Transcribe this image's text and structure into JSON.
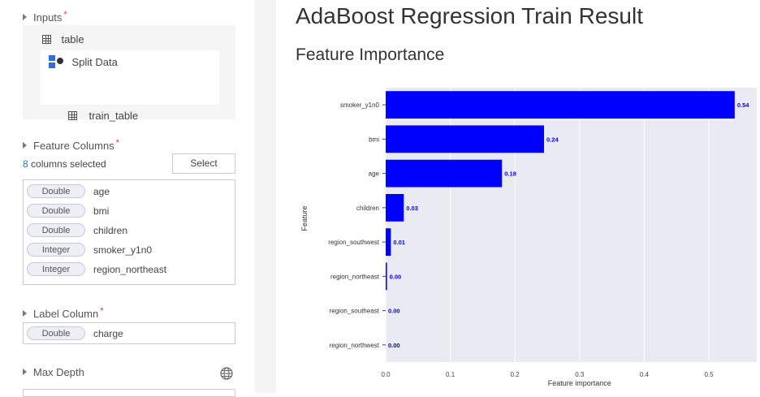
{
  "left": {
    "inputs_label": "Inputs",
    "required_mark": "*",
    "input_table": "table",
    "split_data": "Split Data",
    "train_table": "train_table",
    "feature_columns_label": "Feature Columns",
    "selected_count": "8",
    "selected_suffix": " columns selected",
    "select_button": "Select",
    "columns": [
      {
        "type": "Double",
        "name": "age"
      },
      {
        "type": "Double",
        "name": "bmi"
      },
      {
        "type": "Double",
        "name": "children"
      },
      {
        "type": "Integer",
        "name": "smoker_y1n0"
      },
      {
        "type": "Integer",
        "name": "region_northeast"
      }
    ],
    "label_column_label": "Label Column",
    "label_column": {
      "type": "Double",
      "name": "charge"
    },
    "max_depth_label": "Max Depth"
  },
  "main": {
    "title": "AdaBoost Regression Train Result",
    "subtitle": "Feature Importance"
  },
  "colors": {
    "bar": "#0000ff",
    "plot_bg": "#eaeaf2",
    "link": "#2f6fd6"
  },
  "chart_data": {
    "type": "bar",
    "orientation": "horizontal",
    "categories": [
      "smoker_y1n0",
      "bmi",
      "age",
      "children",
      "region_southwest",
      "region_northeast",
      "region_southeast",
      "region_northwest"
    ],
    "values": [
      0.54,
      0.245,
      0.18,
      0.028,
      0.008,
      0.002,
      0.0,
      0.0
    ],
    "value_labels": [
      "0.54",
      "0.24",
      "0.18",
      "0.03",
      "0.01",
      "0.00",
      "0.00",
      "0.00"
    ],
    "xlabel": "Feature importance",
    "ylabel": "Feature",
    "xlim": [
      0,
      0.55
    ],
    "xticks": [
      "0.0",
      "0.1",
      "0.2",
      "0.3",
      "0.4",
      "0.5"
    ],
    "xtick_values": [
      0,
      0.1,
      0.2,
      0.3,
      0.4,
      0.5
    ],
    "grid": true
  }
}
